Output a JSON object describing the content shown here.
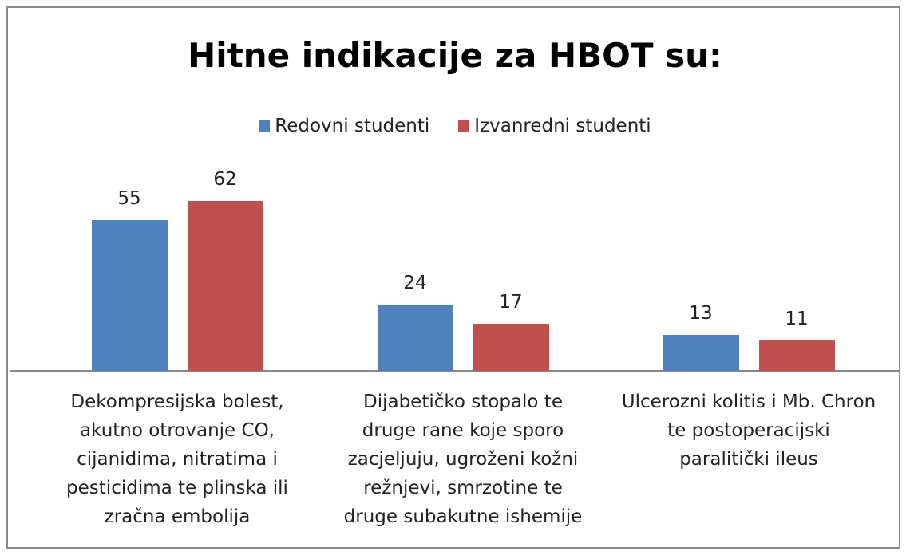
{
  "chart_data": {
    "type": "bar",
    "title": "Hitne indikacije za HBOT su:",
    "categories": [
      "Dekompresijska bolest, akutno otrovanje CO, cijanidima, nitratima i pesticidima te plinska ili zračna embolija",
      "Dijabetičko stopalo te druge rane koje sporo zacjeljuju, ugroženi kožni režnjevi, smrzotine te druge subakutne ishemije",
      "Ulcerozni kolitis i Mb. Chron te postoperacijski paralitički ileus"
    ],
    "series": [
      {
        "name": "Redovni studenti",
        "color": "#4f81bd",
        "values": [
          55,
          24,
          13
        ]
      },
      {
        "name": "Izvanredni studenti",
        "color": "#c0504d",
        "values": [
          62,
          17,
          11
        ]
      }
    ],
    "ylim": [
      0,
      70
    ],
    "legend": "top"
  }
}
